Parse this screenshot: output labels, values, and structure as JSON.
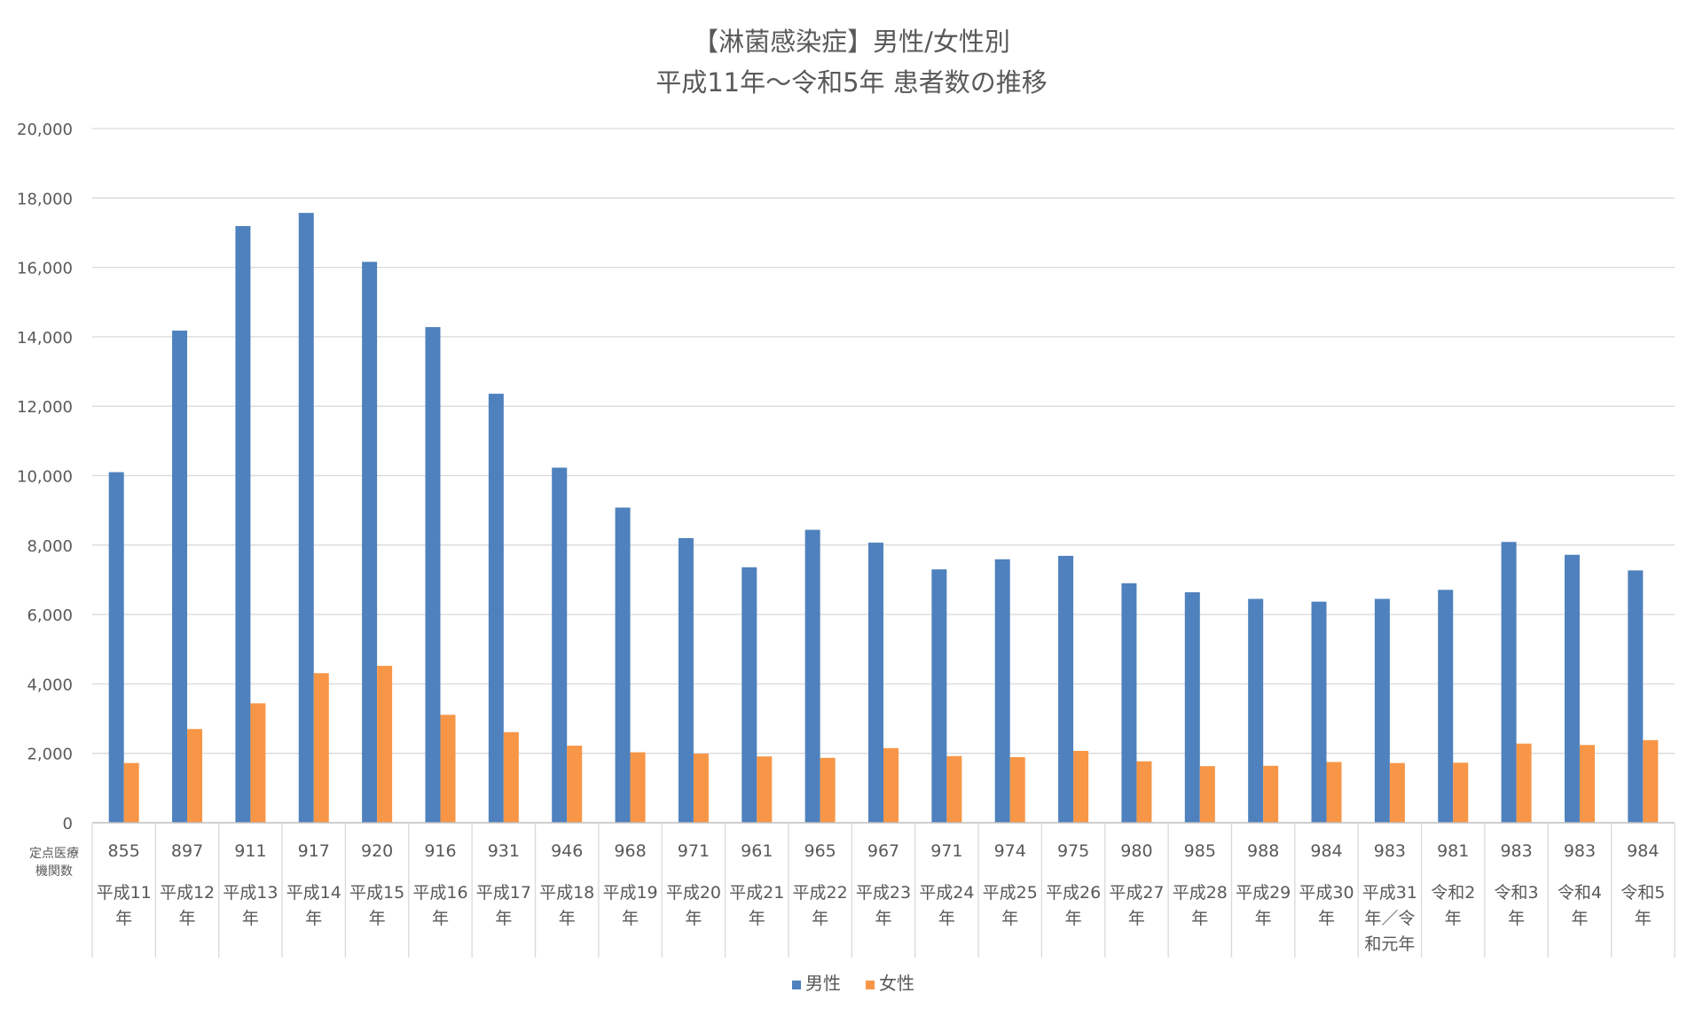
{
  "chart_data": {
    "type": "bar",
    "title": [
      "【淋菌感染症】男性/女性別",
      "平成11年～令和5年 患者数の推移"
    ],
    "categories": [
      "平成11年",
      "平成12年",
      "平成13年",
      "平成14年",
      "平成15年",
      "平成16年",
      "平成17年",
      "平成18年",
      "平成19年",
      "平成20年",
      "平成21年",
      "平成22年",
      "平成23年",
      "平成24年",
      "平成25年",
      "平成26年",
      "平成27年",
      "平成28年",
      "平成29年",
      "平成30年",
      "平成31年／令和元年",
      "令和2年",
      "令和3年",
      "令和4年",
      "令和5年"
    ],
    "category_lines": [
      [
        "平成11",
        "年"
      ],
      [
        "平成12",
        "年"
      ],
      [
        "平成13",
        "年"
      ],
      [
        "平成14",
        "年"
      ],
      [
        "平成15",
        "年"
      ],
      [
        "平成16",
        "年"
      ],
      [
        "平成17",
        "年"
      ],
      [
        "平成18",
        "年"
      ],
      [
        "平成19",
        "年"
      ],
      [
        "平成20",
        "年"
      ],
      [
        "平成21",
        "年"
      ],
      [
        "平成22",
        "年"
      ],
      [
        "平成23",
        "年"
      ],
      [
        "平成24",
        "年"
      ],
      [
        "平成25",
        "年"
      ],
      [
        "平成26",
        "年"
      ],
      [
        "平成27",
        "年"
      ],
      [
        "平成28",
        "年"
      ],
      [
        "平成29",
        "年"
      ],
      [
        "平成30",
        "年"
      ],
      [
        "平成31",
        "年／令",
        "和元年"
      ],
      [
        "令和2",
        "年"
      ],
      [
        "令和3",
        "年"
      ],
      [
        "令和4",
        "年"
      ],
      [
        "令和5",
        "年"
      ]
    ],
    "sentinel_label": [
      "定点医療",
      "機関数"
    ],
    "sentinel_counts": [
      855,
      897,
      911,
      917,
      920,
      916,
      931,
      946,
      968,
      971,
      961,
      965,
      967,
      971,
      974,
      975,
      980,
      985,
      988,
      984,
      983,
      981,
      983,
      983,
      984
    ],
    "series": [
      {
        "name": "男性",
        "color": "#4e81bd",
        "values": [
          10100,
          14180,
          17190,
          17570,
          16160,
          14280,
          12360,
          10230,
          9080,
          8200,
          7360,
          8440,
          8070,
          7300,
          7590,
          7690,
          6900,
          6640,
          6450,
          6370,
          6450,
          6710,
          8090,
          7720,
          7270
        ]
      },
      {
        "name": "女性",
        "color": "#f79646",
        "values": [
          1720,
          2700,
          3440,
          4310,
          4520,
          3110,
          2610,
          2220,
          2030,
          1990,
          1910,
          1870,
          2150,
          1920,
          1890,
          2070,
          1770,
          1630,
          1640,
          1750,
          1720,
          1730,
          2280,
          2240,
          2380
        ]
      }
    ],
    "ylim": [
      0,
      20000
    ],
    "yticks": [
      0,
      2000,
      4000,
      6000,
      8000,
      10000,
      12000,
      14000,
      16000,
      18000,
      20000
    ],
    "ytick_labels": [
      "0",
      "2,000",
      "4,000",
      "6,000",
      "8,000",
      "10,000",
      "12,000",
      "14,000",
      "16,000",
      "18,000",
      "20,000"
    ],
    "grid": true,
    "legend_position": "bottom"
  }
}
